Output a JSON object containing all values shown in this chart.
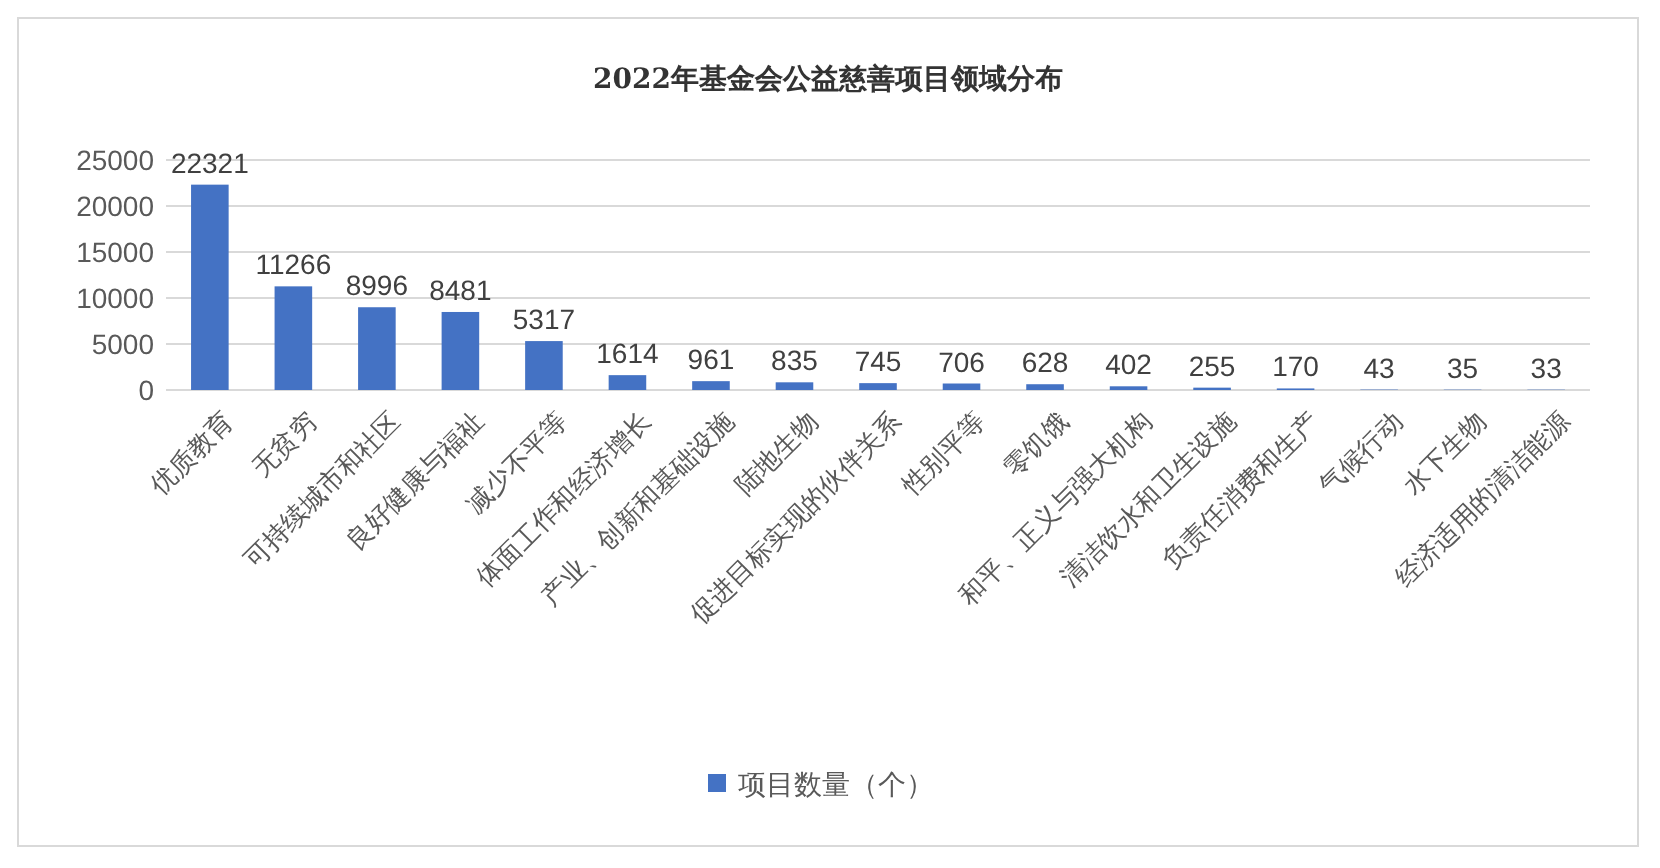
{
  "chart_data": {
    "type": "bar",
    "title": "2022年基金会公益慈善项目领域分布",
    "categories": [
      "优质教育",
      "无贫穷",
      "可持续城市和社区",
      "良好健康与福祉",
      "减少不平等",
      "体面工作和经济增长",
      "产业、创新和基础设施",
      "陆地生物",
      "促进目标实现的伙伴关系",
      "性别平等",
      "零饥饿",
      "和平、正义与强大机构",
      "清洁饮水和卫生设施",
      "负责任消费和生产",
      "气候行动",
      "水下生物",
      "经济适用的清洁能源"
    ],
    "series": [
      {
        "name": "项目数量（个）",
        "color": "#4472c4",
        "values": [
          22321,
          11266,
          8996,
          8481,
          5317,
          1614,
          961,
          835,
          745,
          706,
          628,
          402,
          255,
          170,
          43,
          35,
          33
        ]
      }
    ],
    "ylim": [
      0,
      25000
    ],
    "yticks": [
      0,
      5000,
      10000,
      15000,
      20000,
      25000
    ],
    "grid": "y",
    "legend": "bottom",
    "data_labels": true
  }
}
